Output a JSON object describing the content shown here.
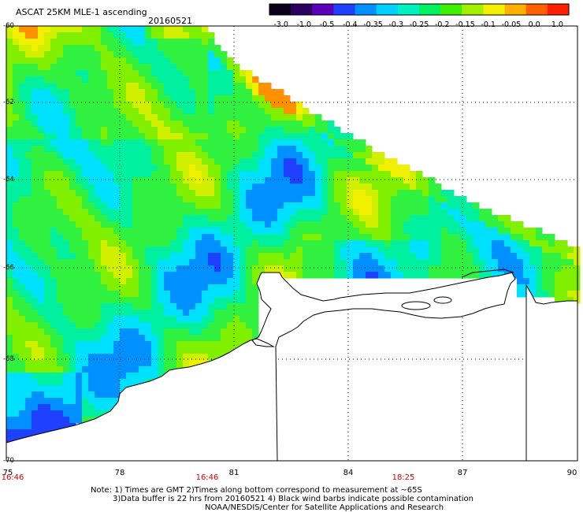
{
  "header": {
    "title": "ASCAT 25KM MLE-1 ascending",
    "date": "20160521"
  },
  "colorbar": {
    "labels": [
      "-3.0",
      "-1.0",
      "-0.5",
      "-0.4",
      "-0.35",
      "-0.3",
      "-0.25",
      "-0.2",
      "-0.15",
      "-0.1",
      "-0.05",
      "0.0",
      "1.0"
    ],
    "colors": [
      "#0a0018",
      "#2a0060",
      "#5a00b8",
      "#2040ff",
      "#0090ff",
      "#00d0ff",
      "#00f0c0",
      "#00f060",
      "#40f000",
      "#a0f000",
      "#f0f000",
      "#ffb000",
      "#ff6000",
      "#ff1e00"
    ]
  },
  "map": {
    "lat_labels": [
      "-60",
      "-62",
      "-64",
      "-66",
      "-68",
      "-70"
    ],
    "lon_labels": [
      "75",
      "78",
      "81",
      "84",
      "87",
      "90"
    ],
    "lat_range": [
      -70,
      -60
    ],
    "lon_range": [
      75,
      90
    ],
    "grid": true,
    "pass_times": [
      "16:46",
      "16:46",
      "18:25"
    ]
  },
  "footer": {
    "line1": "Note: 1) Times are GMT 2)Times along bottom correspond to measurement at ~65S",
    "line2": "3)Data buffer is 22 hrs from 20160521 4) Black wind barbs indicate possible contamination",
    "line3": "NOAA/NESDIS/Center for Satellite Applications and Research"
  }
}
